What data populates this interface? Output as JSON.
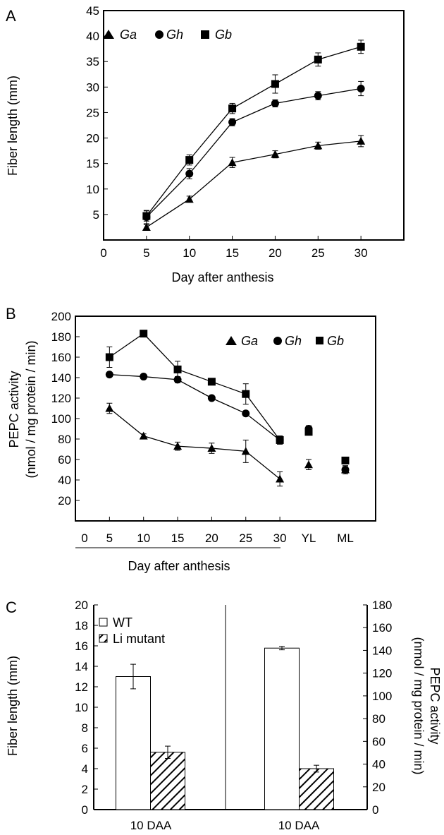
{
  "chart_data": [
    {
      "panel_label": "A",
      "type": "line",
      "xlabel": "Day after anthesis",
      "ylabel": "Fiber length (mm)",
      "xlim": [
        0,
        35
      ],
      "ylim": [
        0,
        45
      ],
      "x_ticks": [
        "0",
        "5",
        "10",
        "15",
        "20",
        "25",
        "30"
      ],
      "y_ticks": [
        "5",
        "10",
        "15",
        "20",
        "25",
        "30",
        "35",
        "40",
        "45"
      ],
      "x": [
        5,
        10,
        15,
        20,
        25,
        30
      ],
      "legend_position": "top-left",
      "series": [
        {
          "name": "Ga",
          "marker": "triangle",
          "values": [
            2.5,
            8,
            15.2,
            16.8,
            18.5,
            19.4
          ],
          "errors": [
            0.5,
            0.6,
            1.0,
            0.7,
            0.7,
            1.1
          ]
        },
        {
          "name": "Gh",
          "marker": "circle",
          "values": [
            4.5,
            13,
            23.1,
            26.8,
            28.3,
            29.7
          ],
          "errors": [
            1.3,
            1.0,
            0.7,
            0.7,
            0.8,
            1.4
          ]
        },
        {
          "name": "Gb",
          "marker": "square",
          "values": [
            4.7,
            15.7,
            25.8,
            30.6,
            35.4,
            37.9
          ],
          "errors": [
            1.0,
            1.0,
            1.0,
            1.8,
            1.3,
            1.3
          ]
        }
      ]
    },
    {
      "panel_label": "B",
      "type": "line",
      "xlabel": "Day after anthesis",
      "ylabel_line1": "PEPC activity",
      "ylabel_line2": "(nmol / mg protein / min)",
      "ylim": [
        0,
        200
      ],
      "x_ticks": [
        "0",
        "5",
        "10",
        "15",
        "20",
        "25",
        "30",
        "YL",
        "ML"
      ],
      "y_ticks": [
        "20",
        "40",
        "60",
        "80",
        "100",
        "120",
        "140",
        "160",
        "180",
        "200"
      ],
      "x": [
        5,
        10,
        15,
        20,
        25,
        30
      ],
      "extra_categories": [
        "YL",
        "ML"
      ],
      "legend_position": "top-right",
      "series": [
        {
          "name": "Ga",
          "marker": "triangle",
          "values": [
            110,
            83,
            73,
            71,
            68,
            41
          ],
          "errors": [
            5,
            2,
            4,
            5,
            11,
            7
          ],
          "extra_values": [
            55,
            50
          ],
          "extra_errors": [
            5,
            4
          ]
        },
        {
          "name": "Gh",
          "marker": "circle",
          "values": [
            143,
            141,
            138,
            120,
            105,
            79
          ],
          "errors": [
            2,
            2,
            3,
            2,
            2,
            4
          ],
          "extra_values": [
            90,
            50
          ],
          "extra_errors": [
            3,
            3
          ]
        },
        {
          "name": "Gb",
          "marker": "square",
          "values": [
            160,
            183,
            148,
            136,
            124,
            79
          ],
          "errors": [
            10,
            3,
            8,
            2,
            10,
            4
          ],
          "extra_values": [
            87,
            59
          ],
          "extra_errors": [
            3,
            2
          ]
        }
      ]
    },
    {
      "panel_label": "C",
      "type": "bar",
      "categories": [
        "10 DAA",
        "10 DAA"
      ],
      "ylabel_left": "Fiber length (mm)",
      "ylabel_right_line1": "PEPC activity",
      "ylabel_right_line2": "(nmol / mg protein / min)",
      "ylim_left": [
        0,
        20
      ],
      "ylim_right": [
        0,
        180
      ],
      "y_ticks_left": [
        "0",
        "2",
        "4",
        "6",
        "8",
        "10",
        "12",
        "14",
        "16",
        "18",
        "20"
      ],
      "y_ticks_right": [
        "0",
        "20",
        "40",
        "60",
        "80",
        "100",
        "120",
        "140",
        "160",
        "180"
      ],
      "legend_position": "top-left",
      "series": [
        {
          "name": "WT",
          "pattern": "white",
          "values": [
            13.0,
            142
          ],
          "errors": [
            1.2,
            1.5
          ]
        },
        {
          "name": "Li mutant",
          "pattern": "hatched",
          "values": [
            5.6,
            36
          ],
          "errors": [
            0.6,
            3
          ]
        }
      ]
    }
  ]
}
